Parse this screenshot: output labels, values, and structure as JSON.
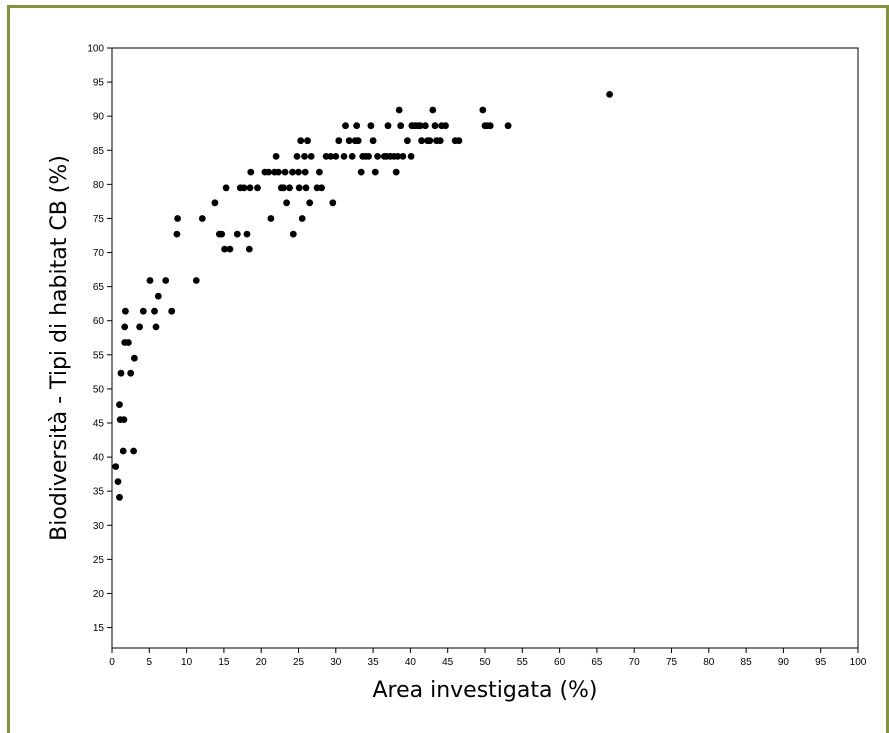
{
  "chart_data": {
    "type": "scatter",
    "title": "",
    "xlabel": "Area investigata (%)",
    "ylabel": "Biodiversità - Tipi di habitat CB (%)",
    "xlim": [
      0,
      100
    ],
    "ylim": [
      12,
      100
    ],
    "xticks": [
      0,
      5,
      10,
      15,
      20,
      25,
      30,
      35,
      40,
      45,
      50,
      55,
      60,
      65,
      70,
      75,
      80,
      85,
      90,
      95,
      100
    ],
    "yticks": [
      15,
      20,
      25,
      30,
      35,
      40,
      45,
      50,
      55,
      60,
      65,
      70,
      75,
      80,
      85,
      90,
      95,
      100
    ],
    "grid": false,
    "legend": "none",
    "point_color": "#000000",
    "frame_color": "#86913e",
    "points": [
      [
        0.5,
        38.6
      ],
      [
        0.8,
        36.4
      ],
      [
        1.0,
        34.1
      ],
      [
        1.0,
        47.7
      ],
      [
        1.1,
        45.5
      ],
      [
        1.2,
        52.3
      ],
      [
        1.5,
        40.9
      ],
      [
        1.6,
        45.5
      ],
      [
        1.7,
        56.8
      ],
      [
        1.7,
        59.1
      ],
      [
        1.8,
        61.4
      ],
      [
        2.2,
        56.8
      ],
      [
        2.5,
        52.3
      ],
      [
        2.9,
        40.9
      ],
      [
        3.0,
        54.5
      ],
      [
        3.7,
        59.1
      ],
      [
        4.2,
        61.4
      ],
      [
        5.1,
        65.9
      ],
      [
        5.7,
        61.4
      ],
      [
        5.9,
        59.1
      ],
      [
        6.2,
        63.6
      ],
      [
        7.2,
        65.9
      ],
      [
        8.0,
        61.4
      ],
      [
        8.7,
        72.7
      ],
      [
        8.8,
        75.0
      ],
      [
        11.3,
        65.9
      ],
      [
        12.1,
        75.0
      ],
      [
        13.8,
        77.3
      ],
      [
        14.4,
        72.7
      ],
      [
        14.7,
        72.7
      ],
      [
        15.1,
        70.5
      ],
      [
        15.3,
        79.5
      ],
      [
        15.8,
        70.5
      ],
      [
        16.8,
        72.7
      ],
      [
        17.2,
        79.5
      ],
      [
        17.7,
        79.5
      ],
      [
        18.1,
        72.7
      ],
      [
        18.4,
        70.5
      ],
      [
        18.5,
        79.5
      ],
      [
        18.6,
        81.8
      ],
      [
        19.5,
        79.5
      ],
      [
        20.5,
        81.8
      ],
      [
        21.0,
        81.8
      ],
      [
        21.3,
        75.0
      ],
      [
        21.8,
        81.8
      ],
      [
        22.0,
        84.1
      ],
      [
        22.3,
        81.8
      ],
      [
        22.7,
        79.5
      ],
      [
        23.0,
        79.5
      ],
      [
        23.2,
        81.8
      ],
      [
        23.4,
        77.3
      ],
      [
        23.8,
        79.5
      ],
      [
        24.2,
        81.8
      ],
      [
        24.3,
        72.7
      ],
      [
        24.8,
        84.1
      ],
      [
        25.0,
        81.8
      ],
      [
        25.1,
        79.5
      ],
      [
        25.3,
        86.4
      ],
      [
        25.5,
        75.0
      ],
      [
        25.8,
        84.1
      ],
      [
        25.9,
        81.8
      ],
      [
        26.0,
        79.5
      ],
      [
        26.2,
        86.4
      ],
      [
        26.5,
        77.3
      ],
      [
        26.7,
        84.1
      ],
      [
        27.5,
        79.5
      ],
      [
        27.8,
        81.8
      ],
      [
        28.1,
        79.5
      ],
      [
        28.7,
        84.1
      ],
      [
        29.3,
        84.1
      ],
      [
        29.6,
        77.3
      ],
      [
        30.0,
        84.1
      ],
      [
        30.4,
        86.4
      ],
      [
        31.1,
        84.1
      ],
      [
        31.3,
        88.6
      ],
      [
        31.8,
        86.4
      ],
      [
        32.2,
        84.1
      ],
      [
        32.6,
        86.4
      ],
      [
        32.8,
        88.6
      ],
      [
        33.0,
        86.4
      ],
      [
        33.4,
        81.8
      ],
      [
        33.6,
        84.1
      ],
      [
        34.0,
        84.1
      ],
      [
        34.4,
        84.1
      ],
      [
        34.7,
        88.6
      ],
      [
        35.0,
        86.4
      ],
      [
        35.3,
        81.8
      ],
      [
        35.6,
        84.1
      ],
      [
        36.5,
        84.1
      ],
      [
        36.8,
        84.1
      ],
      [
        37.0,
        88.6
      ],
      [
        37.3,
        84.1
      ],
      [
        37.8,
        84.1
      ],
      [
        38.1,
        81.8
      ],
      [
        38.3,
        84.1
      ],
      [
        38.5,
        90.9
      ],
      [
        38.7,
        88.6
      ],
      [
        39.0,
        84.1
      ],
      [
        39.6,
        86.4
      ],
      [
        40.1,
        84.1
      ],
      [
        40.2,
        88.6
      ],
      [
        40.6,
        88.6
      ],
      [
        41.0,
        88.6
      ],
      [
        41.3,
        88.6
      ],
      [
        41.5,
        86.4
      ],
      [
        42.0,
        88.6
      ],
      [
        42.3,
        86.4
      ],
      [
        42.6,
        86.4
      ],
      [
        43.0,
        90.9
      ],
      [
        43.3,
        88.6
      ],
      [
        43.5,
        86.4
      ],
      [
        44.0,
        86.4
      ],
      [
        44.2,
        88.6
      ],
      [
        44.7,
        88.6
      ],
      [
        46.0,
        86.4
      ],
      [
        46.5,
        86.4
      ],
      [
        49.7,
        90.9
      ],
      [
        50.0,
        88.6
      ],
      [
        50.3,
        88.6
      ],
      [
        50.7,
        88.6
      ],
      [
        53.1,
        88.6
      ],
      [
        66.7,
        93.2
      ]
    ]
  }
}
